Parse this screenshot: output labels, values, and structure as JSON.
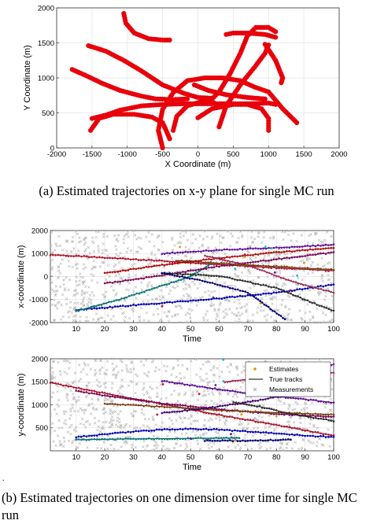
{
  "captions": {
    "a": "(a)  Estimated trajectories on x-y plane for single MC run",
    "b": "(b)  Estimated trajectories on one dimension over time for single MC run",
    "stray_mark": "."
  },
  "chart_data": [
    {
      "type": "scatter",
      "xlabel": "X Coordinate (m)",
      "ylabel": "Y Coordinate (m)",
      "xlim": [
        -2000,
        2000
      ],
      "ylim": [
        0,
        2000
      ],
      "xticks": [
        -2000,
        -1500,
        -1000,
        -500,
        0,
        500,
        1000,
        1500,
        2000
      ],
      "yticks": [
        0,
        500,
        1000,
        1500,
        2000
      ],
      "grid": true,
      "color": "#e8000b",
      "tracks": [
        [
          [
            -1050,
            1920
          ],
          [
            -1020,
            1780
          ],
          [
            -900,
            1640
          ],
          [
            -700,
            1560
          ],
          [
            -500,
            1540
          ],
          [
            -400,
            1540
          ]
        ],
        [
          [
            -1550,
            1460
          ],
          [
            -1300,
            1380
          ],
          [
            -1050,
            1250
          ],
          [
            -800,
            1100
          ],
          [
            -500,
            900
          ],
          [
            -200,
            780
          ],
          [
            0,
            720
          ],
          [
            200,
            710
          ]
        ],
        [
          [
            -1780,
            1120
          ],
          [
            -1600,
            1040
          ],
          [
            -1350,
            920
          ],
          [
            -1100,
            820
          ],
          [
            -800,
            740
          ],
          [
            -600,
            700
          ],
          [
            -350,
            690
          ],
          [
            -150,
            700
          ]
        ],
        [
          [
            -1500,
            420
          ],
          [
            -1300,
            470
          ],
          [
            -1100,
            540
          ],
          [
            -800,
            600
          ],
          [
            -500,
            620
          ],
          [
            -200,
            630
          ],
          [
            100,
            630
          ],
          [
            400,
            630
          ],
          [
            700,
            630
          ],
          [
            1000,
            640
          ],
          [
            1100,
            620
          ]
        ],
        [
          [
            -1520,
            250
          ],
          [
            -1400,
            420
          ],
          [
            -1200,
            480
          ],
          [
            -900,
            480
          ],
          [
            -650,
            440
          ],
          [
            -500,
            360
          ],
          [
            -450,
            250
          ],
          [
            -400,
            130
          ]
        ],
        [
          [
            -500,
            0
          ],
          [
            -560,
            250
          ],
          [
            -500,
            550
          ],
          [
            -350,
            790
          ],
          [
            -150,
            960
          ],
          [
            100,
            1000
          ],
          [
            350,
            1000
          ],
          [
            600,
            960
          ],
          [
            800,
            870
          ],
          [
            1000,
            800
          ],
          [
            1200,
            560
          ],
          [
            1400,
            360
          ]
        ],
        [
          [
            -50,
            900
          ],
          [
            150,
            820
          ],
          [
            400,
            760
          ],
          [
            700,
            720
          ],
          [
            950,
            700
          ]
        ],
        [
          [
            0,
            430
          ],
          [
            200,
            560
          ],
          [
            500,
            620
          ],
          [
            700,
            620
          ],
          [
            900,
            560
          ],
          [
            1000,
            420
          ],
          [
            1000,
            250
          ]
        ],
        [
          [
            300,
            300
          ],
          [
            400,
            600
          ],
          [
            600,
            900
          ],
          [
            800,
            1150
          ],
          [
            950,
            1350
          ],
          [
            1000,
            1470
          ]
        ],
        [
          [
            950,
            1480
          ],
          [
            1100,
            1250
          ],
          [
            1200,
            1000
          ],
          [
            1180,
            930
          ]
        ],
        [
          [
            200,
            700
          ],
          [
            300,
            800
          ],
          [
            450,
            1050
          ],
          [
            600,
            1350
          ],
          [
            700,
            1600
          ],
          [
            820,
            1720
          ],
          [
            1000,
            1720
          ],
          [
            1100,
            1660
          ]
        ],
        [
          [
            400,
            1620
          ],
          [
            500,
            1640
          ],
          [
            700,
            1640
          ],
          [
            950,
            1620
          ],
          [
            1100,
            1580
          ]
        ],
        [
          [
            -350,
            250
          ],
          [
            -300,
            450
          ],
          [
            -150,
            600
          ],
          [
            50,
            660
          ],
          [
            200,
            660
          ],
          [
            300,
            600
          ]
        ]
      ]
    },
    {
      "type": "scatter",
      "xlabel": "Time",
      "ylabel": "x-coordinate (m)",
      "xlim": [
        1,
        100
      ],
      "ylim": [
        -2000,
        2000
      ],
      "xticks": [
        10,
        20,
        30,
        40,
        50,
        60,
        70,
        80,
        90,
        100
      ],
      "yticks": [
        -2000,
        -1000,
        0,
        1000,
        2000
      ],
      "grid": true,
      "tracks": [
        {
          "color": "#c8102e",
          "points": [
            [
              1,
              950
            ],
            [
              20,
              820
            ],
            [
              40,
              680
            ],
            [
              60,
              520
            ],
            [
              80,
              380
            ],
            [
              100,
              250
            ]
          ]
        },
        {
          "color": "#0000cc",
          "points": [
            [
              10,
              -1450
            ],
            [
              40,
              -1150
            ],
            [
              60,
              -950
            ],
            [
              80,
              -700
            ],
            [
              100,
              -350
            ]
          ]
        },
        {
          "color": "#008080",
          "points": [
            [
              10,
              -1500
            ],
            [
              25,
              -1000
            ],
            [
              40,
              -400
            ],
            [
              50,
              0
            ],
            [
              57,
              550
            ]
          ]
        },
        {
          "color": "#8b0060",
          "points": [
            [
              20,
              -300
            ],
            [
              40,
              50
            ],
            [
              60,
              450
            ],
            [
              80,
              750
            ],
            [
              100,
              1050
            ]
          ]
        },
        {
          "color": "#cc0000",
          "points": [
            [
              20,
              150
            ],
            [
              40,
              500
            ],
            [
              60,
              800
            ],
            [
              80,
              1050
            ],
            [
              100,
              1250
            ]
          ]
        },
        {
          "color": "#6a0dad",
          "points": [
            [
              40,
              1000
            ],
            [
              60,
              1150
            ],
            [
              80,
              1250
            ],
            [
              100,
              1380
            ]
          ]
        },
        {
          "color": "#333333",
          "points": [
            [
              40,
              150
            ],
            [
              60,
              30
            ],
            [
              80,
              -500
            ],
            [
              100,
              -1500
            ]
          ]
        },
        {
          "color": "#000080",
          "points": [
            [
              40,
              150
            ],
            [
              55,
              -200
            ],
            [
              70,
              -700
            ],
            [
              83,
              -1850
            ]
          ]
        },
        {
          "color": "#b03060",
          "points": [
            [
              55,
              900
            ],
            [
              70,
              500
            ],
            [
              85,
              -200
            ],
            [
              100,
              -700
            ]
          ]
        },
        {
          "color": "#8b4513",
          "points": [
            [
              45,
              700
            ],
            [
              70,
              500
            ],
            [
              100,
              300
            ]
          ]
        }
      ]
    },
    {
      "type": "scatter",
      "xlabel": "Time",
      "ylabel": "y-coordinate (m)",
      "xlim": [
        1,
        100
      ],
      "ylim": [
        0,
        2000
      ],
      "xticks": [
        10,
        20,
        30,
        40,
        50,
        60,
        70,
        80,
        90,
        100
      ],
      "yticks": [
        500,
        1000,
        1500,
        2000
      ],
      "grid": true,
      "legend": {
        "placement": "top-right",
        "entries": [
          "Estimates",
          "True tracks",
          "Measurements"
        ]
      },
      "tracks": [
        {
          "color": "#c8102e",
          "points": [
            [
              1,
              1480
            ],
            [
              20,
              1250
            ],
            [
              40,
              1020
            ],
            [
              60,
              780
            ],
            [
              80,
              560
            ],
            [
              100,
              330
            ]
          ]
        },
        {
          "color": "#0000cc",
          "points": [
            [
              10,
              300
            ],
            [
              20,
              360
            ],
            [
              30,
              420
            ],
            [
              40,
              460
            ],
            [
              50,
              480
            ],
            [
              60,
              460
            ],
            [
              70,
              420
            ],
            [
              80,
              380
            ],
            [
              90,
              330
            ],
            [
              100,
              300
            ]
          ]
        },
        {
          "color": "#008080",
          "points": [
            [
              10,
              240
            ],
            [
              30,
              260
            ],
            [
              50,
              270
            ],
            [
              67,
              280
            ]
          ]
        },
        {
          "color": "#8b0060",
          "points": [
            [
              10,
              1300
            ],
            [
              20,
              1200
            ],
            [
              40,
              1030
            ],
            [
              60,
              900
            ],
            [
              80,
              800
            ],
            [
              100,
              740
            ]
          ]
        },
        {
          "color": "#6a0dad",
          "points": [
            [
              40,
              1520
            ],
            [
              55,
              1380
            ],
            [
              70,
              1250
            ],
            [
              85,
              1150
            ],
            [
              100,
              1050
            ]
          ]
        },
        {
          "color": "#8b4513",
          "points": [
            [
              20,
              1020
            ],
            [
              40,
              960
            ],
            [
              60,
              880
            ],
            [
              80,
              830
            ],
            [
              100,
              790
            ]
          ]
        },
        {
          "color": "#4b0082",
          "points": [
            [
              40,
              820
            ],
            [
              55,
              920
            ],
            [
              70,
              1060
            ],
            [
              85,
              1220
            ]
          ]
        },
        {
          "color": "#000080",
          "points": [
            [
              55,
              220
            ],
            [
              70,
              220
            ],
            [
              85,
              240
            ]
          ]
        },
        {
          "color": "#b03060",
          "points": [
            [
              62,
              1500
            ],
            [
              80,
              1620
            ],
            [
              100,
              1700
            ]
          ]
        },
        {
          "color": "#9400d3",
          "points": [
            [
              70,
              1750
            ],
            [
              85,
              1800
            ],
            [
              100,
              1870
            ]
          ]
        },
        {
          "color": "#333333",
          "points": [
            [
              65,
              1050
            ],
            [
              75,
              950
            ],
            [
              85,
              800
            ],
            [
              100,
              650
            ]
          ]
        }
      ]
    }
  ]
}
